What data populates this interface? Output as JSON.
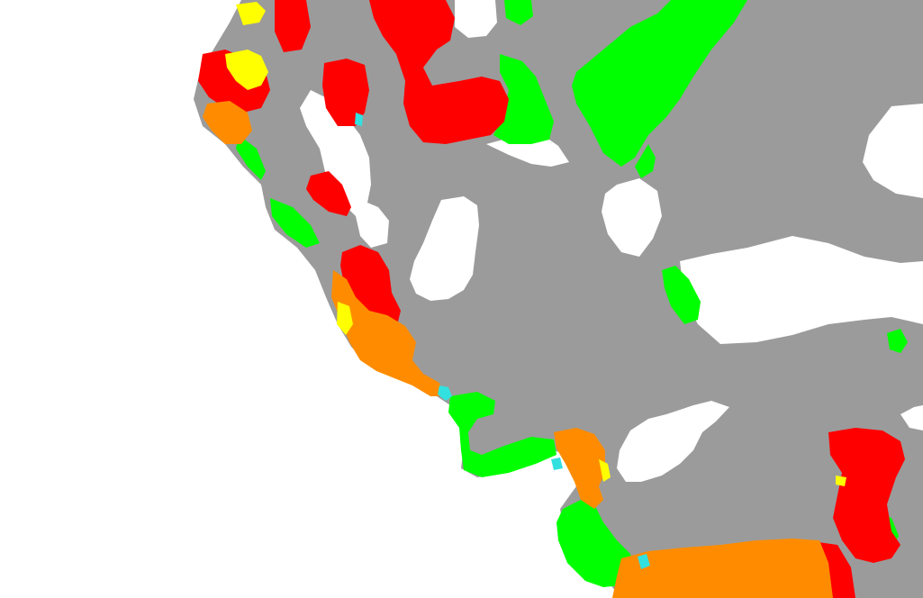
{
  "map": {
    "background_color": "#ffffff",
    "legend": [],
    "colors": {
      "land": "#9b9b9b",
      "water": "#ffffff",
      "class_red": "#ff0000",
      "class_orange": "#ff8c00",
      "class_yellow": "#ffff00",
      "class_green": "#00ff00",
      "class_cyan": "#33e0e0"
    }
  }
}
